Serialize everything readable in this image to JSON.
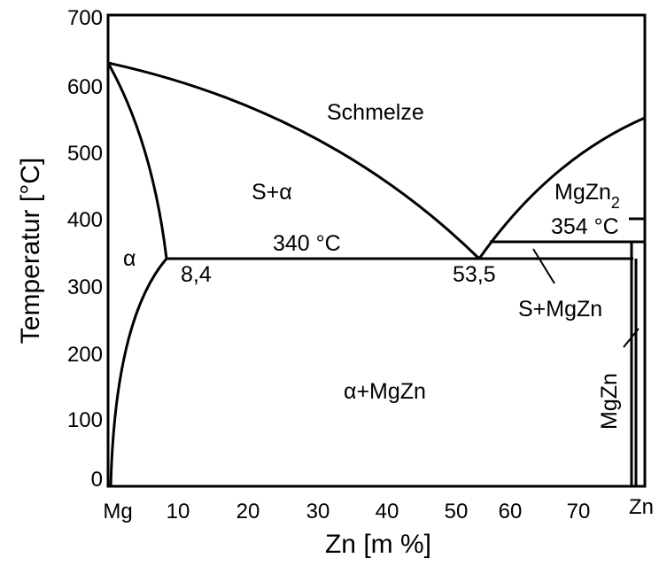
{
  "axes": {
    "x_title": "Zn [m %]",
    "y_title": "Temperatur [°C]",
    "y_ticks": [
      "0",
      "100",
      "200",
      "300",
      "400",
      "500",
      "600",
      "700"
    ],
    "x_ticks": [
      "Mg",
      "10",
      "20",
      "30",
      "40",
      "50",
      "60",
      "70",
      "Zn"
    ]
  },
  "regions": {
    "melt": "Schmelze",
    "s_alpha": "S+α",
    "alpha": "α",
    "alpha_mgzn": "α+MgZn",
    "mgzn2": "MgZn",
    "mgzn2_sub": "2",
    "s_mgzn": "S+MgZn",
    "mgzn_vertical": "MgZn"
  },
  "annotations": {
    "eutectic_temp": "340 °C",
    "peritectic_temp": "354 °C",
    "solubility_limit": "8,4",
    "eutectic_comp": "53,5"
  }
}
